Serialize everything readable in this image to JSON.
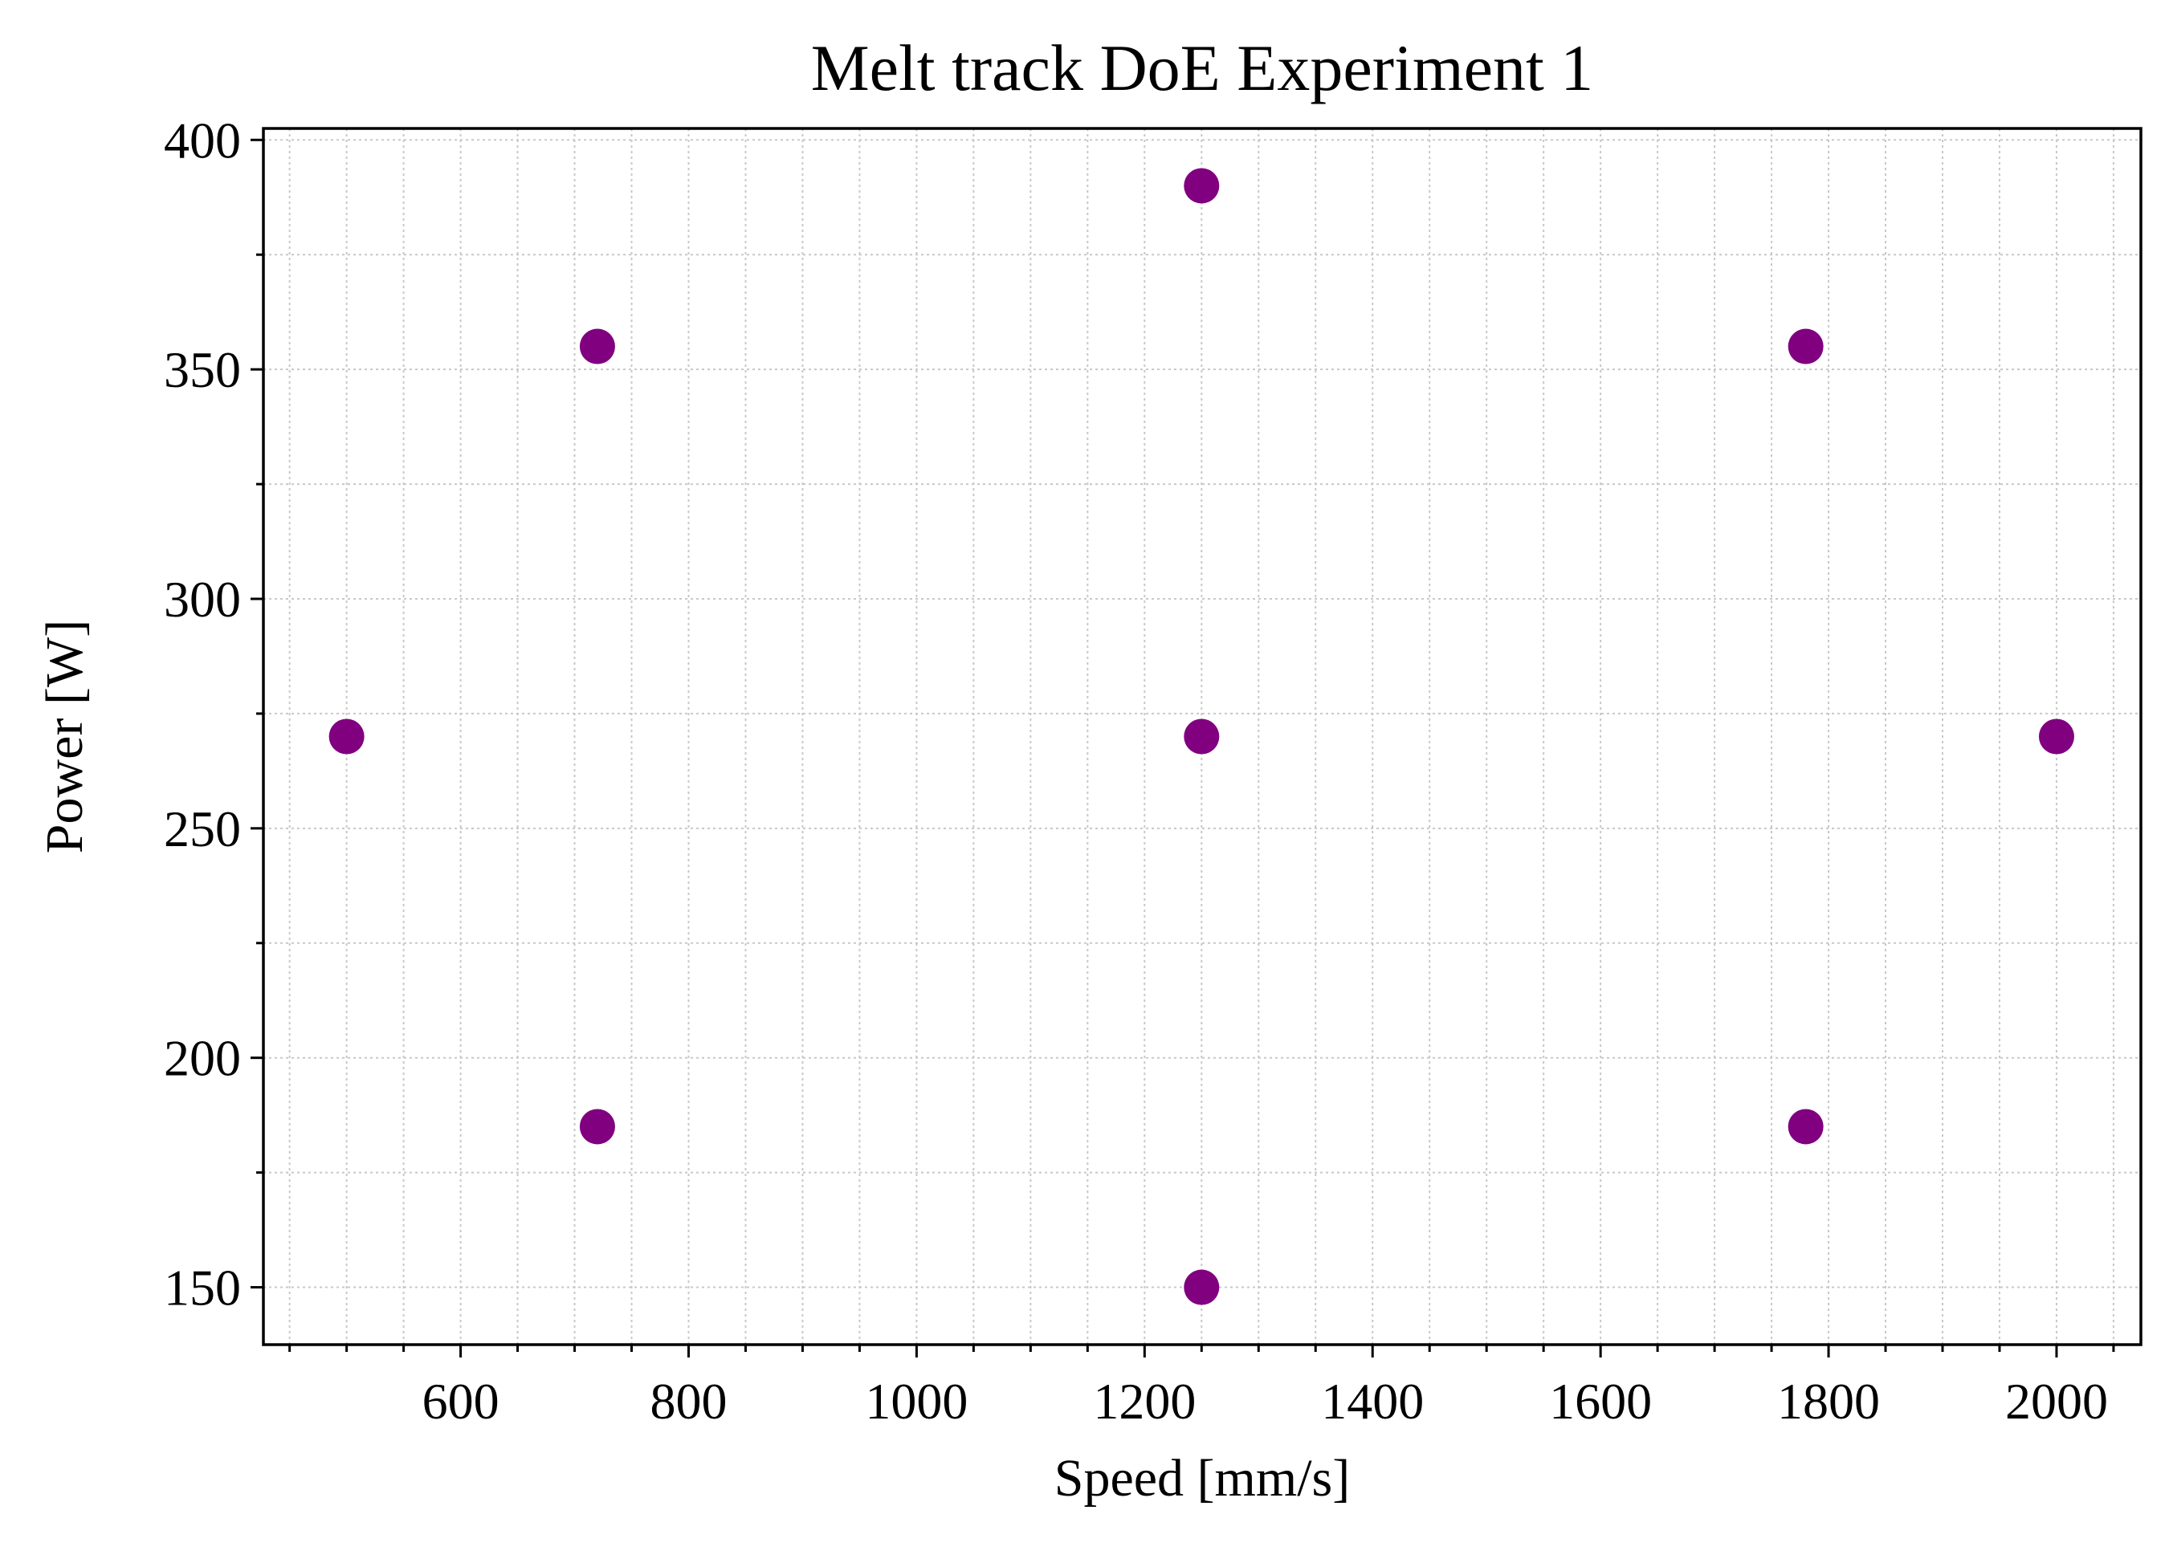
{
  "chart_data": {
    "type": "scatter",
    "title": "Melt track DoE Experiment 1",
    "xlabel": "Speed [mm/s]",
    "ylabel": "Power [W]",
    "xlim": [
      427,
      2074
    ],
    "ylim": [
      137.5,
      402.5
    ],
    "xticks": [
      600,
      800,
      1000,
      1200,
      1400,
      1600,
      1800,
      2000
    ],
    "yticks": [
      150,
      200,
      250,
      300,
      350,
      400
    ],
    "x_minor_step": 50,
    "y_minor_step": 25,
    "grid": true,
    "marker_color": "#800080",
    "series": [
      {
        "points": [
          {
            "x": 1250,
            "y": 390
          },
          {
            "x": 720,
            "y": 355
          },
          {
            "x": 1780,
            "y": 355
          },
          {
            "x": 500,
            "y": 270
          },
          {
            "x": 1250,
            "y": 270
          },
          {
            "x": 2000,
            "y": 270
          },
          {
            "x": 720,
            "y": 185
          },
          {
            "x": 1780,
            "y": 185
          },
          {
            "x": 1250,
            "y": 150
          }
        ]
      }
    ]
  }
}
